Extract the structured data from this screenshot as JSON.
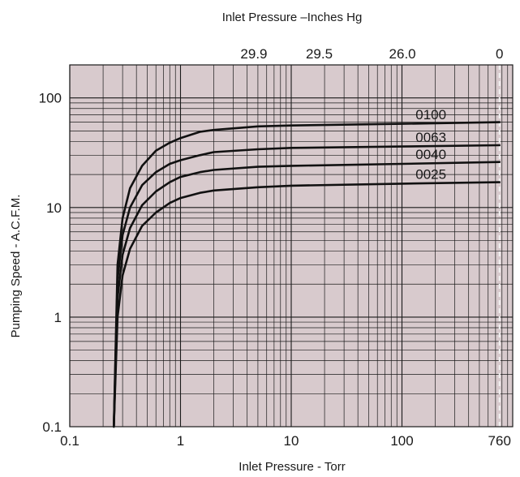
{
  "chart_data": {
    "type": "line",
    "title": "Inlet Pressure –Inches Hg",
    "xlabel": "Inlet Pressure - Torr",
    "ylabel": "Pumping Speed - A.C.F.M.",
    "x_scale": "log",
    "y_scale": "log",
    "xlim": [
      0.1,
      1000
    ],
    "ylim": [
      0.1,
      200
    ],
    "x_ticks": [
      {
        "value": 0.1,
        "label": "0.1"
      },
      {
        "value": 1,
        "label": "1"
      },
      {
        "value": 10,
        "label": "10"
      },
      {
        "value": 100,
        "label": "100"
      },
      {
        "value": 760,
        "label": "760"
      }
    ],
    "y_ticks": [
      {
        "value": 0.1,
        "label": "0.1"
      },
      {
        "value": 1,
        "label": "1"
      },
      {
        "value": 10,
        "label": "10"
      },
      {
        "value": 100,
        "label": "100"
      }
    ],
    "secondary_x_ticks": [
      {
        "value": 4.6,
        "label": "29.9"
      },
      {
        "value": 17.9,
        "label": "29.5"
      },
      {
        "value": 101,
        "label": "26.0"
      },
      {
        "value": 760,
        "label": "0"
      }
    ],
    "reference_line_x": 760,
    "grid": true,
    "colors": {
      "plot_background": "#d8cacd",
      "grid_line": "#1a1a1a",
      "series_line": "#111111",
      "reference_line": "#f2f2f2"
    },
    "series": [
      {
        "name": "0100",
        "x": [
          0.25,
          0.27,
          0.3,
          0.35,
          0.45,
          0.6,
          0.8,
          1,
          1.5,
          2,
          5,
          10,
          100,
          760
        ],
        "y": [
          0.1,
          3,
          8,
          15,
          24,
          33,
          39,
          43,
          49,
          51,
          55,
          56,
          58,
          60
        ]
      },
      {
        "name": "0063",
        "x": [
          0.25,
          0.27,
          0.3,
          0.35,
          0.45,
          0.6,
          0.8,
          1,
          1.5,
          2,
          5,
          10,
          100,
          760
        ],
        "y": [
          0.1,
          2.2,
          5.6,
          10,
          16,
          21,
          25,
          27,
          30,
          32,
          34,
          35,
          36,
          37
        ]
      },
      {
        "name": "0040",
        "x": [
          0.25,
          0.27,
          0.3,
          0.35,
          0.45,
          0.6,
          0.8,
          1,
          1.5,
          2,
          5,
          10,
          100,
          760
        ],
        "y": [
          0.1,
          1.5,
          3.7,
          6.5,
          10.5,
          14,
          17,
          19,
          21,
          22,
          23.5,
          24,
          25,
          26
        ]
      },
      {
        "name": "0025",
        "x": [
          0.25,
          0.27,
          0.3,
          0.35,
          0.45,
          0.6,
          0.8,
          1,
          1.5,
          2,
          5,
          10,
          100,
          760
        ],
        "y": [
          0.1,
          1.0,
          2.4,
          4.2,
          6.8,
          9,
          11,
          12.2,
          13.6,
          14.3,
          15.3,
          15.8,
          16.5,
          17
        ]
      }
    ]
  }
}
